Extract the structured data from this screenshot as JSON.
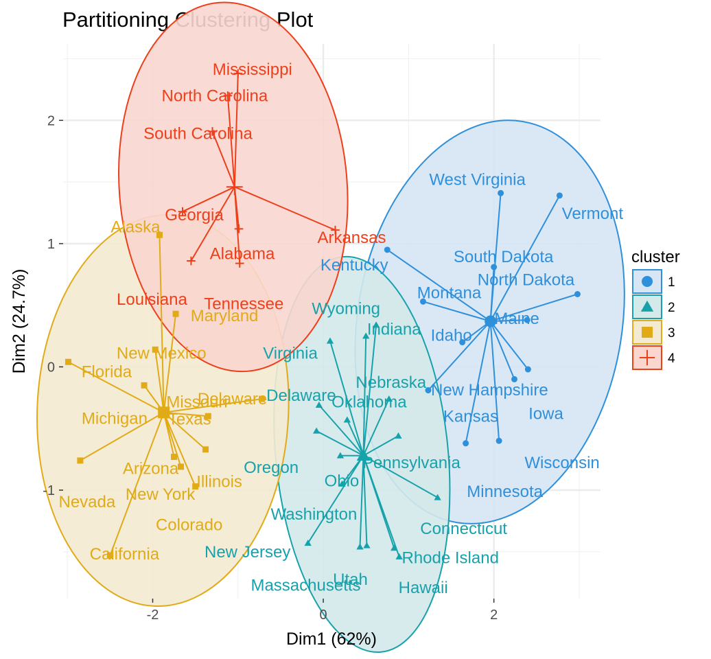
{
  "chart_data": {
    "type": "scatter",
    "title": "Partitioning Clustering Plot",
    "xlabel": "Dim1 (62%)",
    "ylabel": "Dim2 (24.7%)",
    "xlim": [
      -3.05,
      3.25
    ],
    "ylim": [
      -1.88,
      2.62
    ],
    "x_ticks": [
      -2,
      0,
      2
    ],
    "x_tick_labels": [
      "-2",
      "0",
      "2"
    ],
    "y_ticks": [
      -1,
      0,
      1,
      2
    ],
    "y_tick_labels": [
      "-1",
      "0",
      "1",
      "2"
    ],
    "grid": true,
    "legend_title": "cluster",
    "legend_position": "right",
    "series": [
      {
        "name": "1",
        "color": "#2e8fdb",
        "fill": "#d6e6f5",
        "shape": "circle",
        "center": [
          1.96,
          0.37
        ],
        "points": [
          {
            "label": "West Virginia",
            "x": 2.08,
            "y": 1.41
          },
          {
            "label": "Vermont",
            "x": 2.77,
            "y": 1.39
          },
          {
            "label": "South Dakota",
            "x": 2.0,
            "y": 0.81
          },
          {
            "label": "Kentucky",
            "x": 0.75,
            "y": 0.95
          },
          {
            "label": "North Dakota",
            "x": 2.98,
            "y": 0.59
          },
          {
            "label": "Montana",
            "x": 1.17,
            "y": 0.53
          },
          {
            "label": "Maine",
            "x": 2.39,
            "y": 0.38
          },
          {
            "label": "Idaho",
            "x": 1.63,
            "y": 0.2
          },
          {
            "label": "New Hampshire",
            "x": 2.4,
            "y": -0.02
          },
          {
            "label": "Iowa",
            "x": 2.24,
            "y": -0.1
          },
          {
            "label": "Kansas",
            "x": 1.23,
            "y": -0.19
          },
          {
            "label": "Wisconsin",
            "x": 2.06,
            "y": -0.6
          },
          {
            "label": "Minnesota",
            "x": 1.67,
            "y": -0.62
          }
        ]
      },
      {
        "name": "2",
        "color": "#17a2ab",
        "fill": "#d4e9ea",
        "shape": "triangle",
        "center": [
          0.47,
          -0.72
        ],
        "points": [
          {
            "label": "Wyoming",
            "x": 0.62,
            "y": 0.34
          },
          {
            "label": "Indiana",
            "x": 0.5,
            "y": 0.25
          },
          {
            "label": "Virginia",
            "x": 0.08,
            "y": 0.21
          },
          {
            "label": "Delaware",
            "x": -0.05,
            "y": -0.31
          },
          {
            "label": "Nebraska",
            "x": 0.77,
            "y": -0.26
          },
          {
            "label": "Oklahoma",
            "x": 0.28,
            "y": -0.43
          },
          {
            "label": "Oregon",
            "x": -0.08,
            "y": -0.52
          },
          {
            "label": "Pennsylvania",
            "x": 0.88,
            "y": -0.56
          },
          {
            "label": "Ohio",
            "x": 0.2,
            "y": -0.72
          },
          {
            "label": "Washington",
            "x": 0.22,
            "y": -0.95
          },
          {
            "label": "Connecticut",
            "x": 1.34,
            "y": -1.06
          },
          {
            "label": "New Jersey",
            "x": -0.18,
            "y": -1.43
          },
          {
            "label": "Utah",
            "x": 0.51,
            "y": -1.45
          },
          {
            "label": "Massachusetts",
            "x": 0.43,
            "y": -1.46
          },
          {
            "label": "Rhode Island",
            "x": 0.83,
            "y": -1.47
          },
          {
            "label": "Hawaii",
            "x": 0.89,
            "y": -1.54
          }
        ]
      },
      {
        "name": "3",
        "color": "#e1aa17",
        "fill": "#f4ead2",
        "shape": "square",
        "center": [
          -1.87,
          -0.37
        ],
        "points": [
          {
            "label": "Alaska",
            "x": -1.92,
            "y": 1.07
          },
          {
            "label": "Maryland",
            "x": -1.73,
            "y": 0.43
          },
          {
            "label": "New Mexico",
            "x": -1.97,
            "y": 0.14
          },
          {
            "label": "Florida",
            "x": -2.99,
            "y": 0.04
          },
          {
            "label": "Missouri",
            "x": -2.1,
            "y": -0.15
          },
          {
            "label": "Delaware",
            "x": -0.72,
            "y": -0.26
          },
          {
            "label": "Texas",
            "x": -1.35,
            "y": -0.4
          },
          {
            "label": "Michigan",
            "x": -1.9,
            "y": -0.35
          },
          {
            "label": "Illinois",
            "x": -1.38,
            "y": -0.67
          },
          {
            "label": "Arizona",
            "x": -1.75,
            "y": -0.73
          },
          {
            "label": "Nevada",
            "x": -2.85,
            "y": -0.76
          },
          {
            "label": "New York",
            "x": -1.67,
            "y": -0.81
          },
          {
            "label": "Colorado",
            "x": -1.5,
            "y": -0.97
          },
          {
            "label": "California",
            "x": -2.5,
            "y": -1.53
          }
        ]
      },
      {
        "name": "4",
        "color": "#ee3f1b",
        "fill": "#fad6cf",
        "shape": "plus",
        "center": [
          -1.04,
          1.46
        ],
        "points": [
          {
            "label": "Mississippi",
            "x": -1.0,
            "y": 2.38
          },
          {
            "label": "North Carolina",
            "x": -1.12,
            "y": 2.2
          },
          {
            "label": "South Carolina",
            "x": -1.3,
            "y": 1.91
          },
          {
            "label": "Georgia",
            "x": -1.65,
            "y": 1.26
          },
          {
            "label": "Arkansas",
            "x": 0.14,
            "y": 1.11
          },
          {
            "label": "Alabama",
            "x": -0.99,
            "y": 1.12
          },
          {
            "label": "Tennessee",
            "x": -0.98,
            "y": 0.84
          },
          {
            "label": "Louisiana",
            "x": -1.55,
            "y": 0.86
          }
        ]
      }
    ]
  }
}
